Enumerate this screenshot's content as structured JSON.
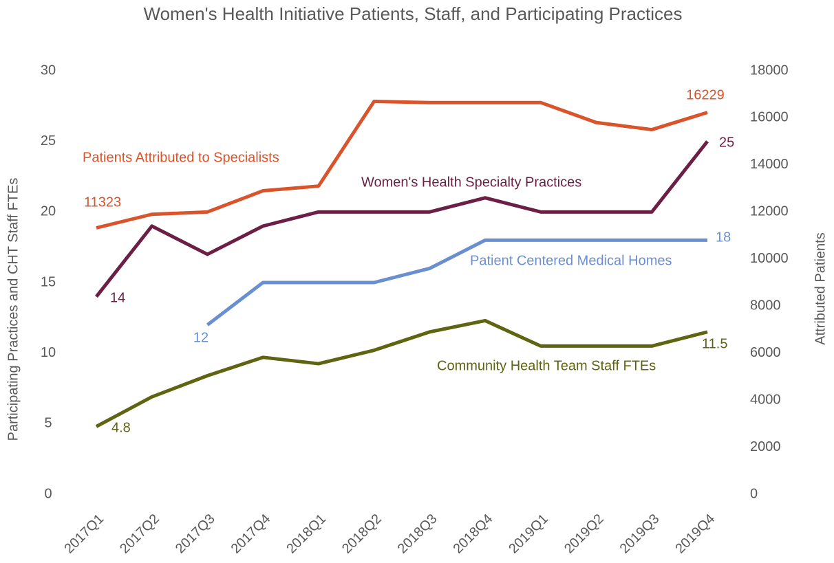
{
  "chart_data": {
    "type": "line",
    "title": "Women's Health Initiative Patients, Staff, and Participating Practices",
    "ylabel": "Participating Practices and CHT Staff FTEs",
    "y2label": "Attributed Patients",
    "categories": [
      "2017Q1",
      "2017Q2",
      "2017Q3",
      "2017Q4",
      "2018Q1",
      "2018Q2",
      "2018Q3",
      "2018Q4",
      "2019Q1",
      "2019Q2",
      "2019Q3",
      "2019Q4"
    ],
    "ylim": [
      0,
      30
    ],
    "yticks": [
      0,
      5,
      10,
      15,
      20,
      25,
      30
    ],
    "y2lim": [
      0,
      18000
    ],
    "y2ticks": [
      0,
      2000,
      4000,
      6000,
      8000,
      10000,
      12000,
      14000,
      16000,
      18000
    ],
    "grid": false,
    "series": [
      {
        "name": "Patients Attributed to Specialists",
        "color": "#d9532b",
        "axis": "y2",
        "values": [
          11323,
          11900,
          12000,
          12900,
          13100,
          16700,
          16650,
          16650,
          16650,
          15800,
          15500,
          16229
        ],
        "value_labels": [
          "11323",
          null,
          null,
          null,
          null,
          null,
          null,
          null,
          null,
          null,
          null,
          "16229"
        ]
      },
      {
        "name": "Women's Health Specialty Practices",
        "color": "#6b1f44",
        "values": [
          14,
          19,
          17,
          19,
          20,
          20,
          20,
          21,
          20,
          20,
          20,
          25
        ],
        "value_labels": [
          "14",
          null,
          null,
          null,
          null,
          null,
          null,
          null,
          null,
          null,
          null,
          "25"
        ]
      },
      {
        "name": "Patient Centered Medical Homes",
        "color": "#6a8fd0",
        "values": [
          null,
          null,
          12,
          15,
          15,
          15,
          16,
          18,
          18,
          18,
          18,
          18
        ],
        "value_labels": [
          null,
          null,
          "12",
          null,
          null,
          null,
          null,
          null,
          null,
          null,
          null,
          "18"
        ]
      },
      {
        "name": "Community Health Team Staff FTEs",
        "color": "#5e6410",
        "values": [
          4.8,
          6.9,
          8.4,
          9.7,
          9.25,
          10.2,
          11.5,
          12.3,
          10.5,
          10.5,
          10.5,
          11.5
        ],
        "value_labels": [
          "4.8",
          null,
          null,
          null,
          null,
          null,
          null,
          null,
          null,
          null,
          null,
          "11.5"
        ]
      }
    ]
  }
}
